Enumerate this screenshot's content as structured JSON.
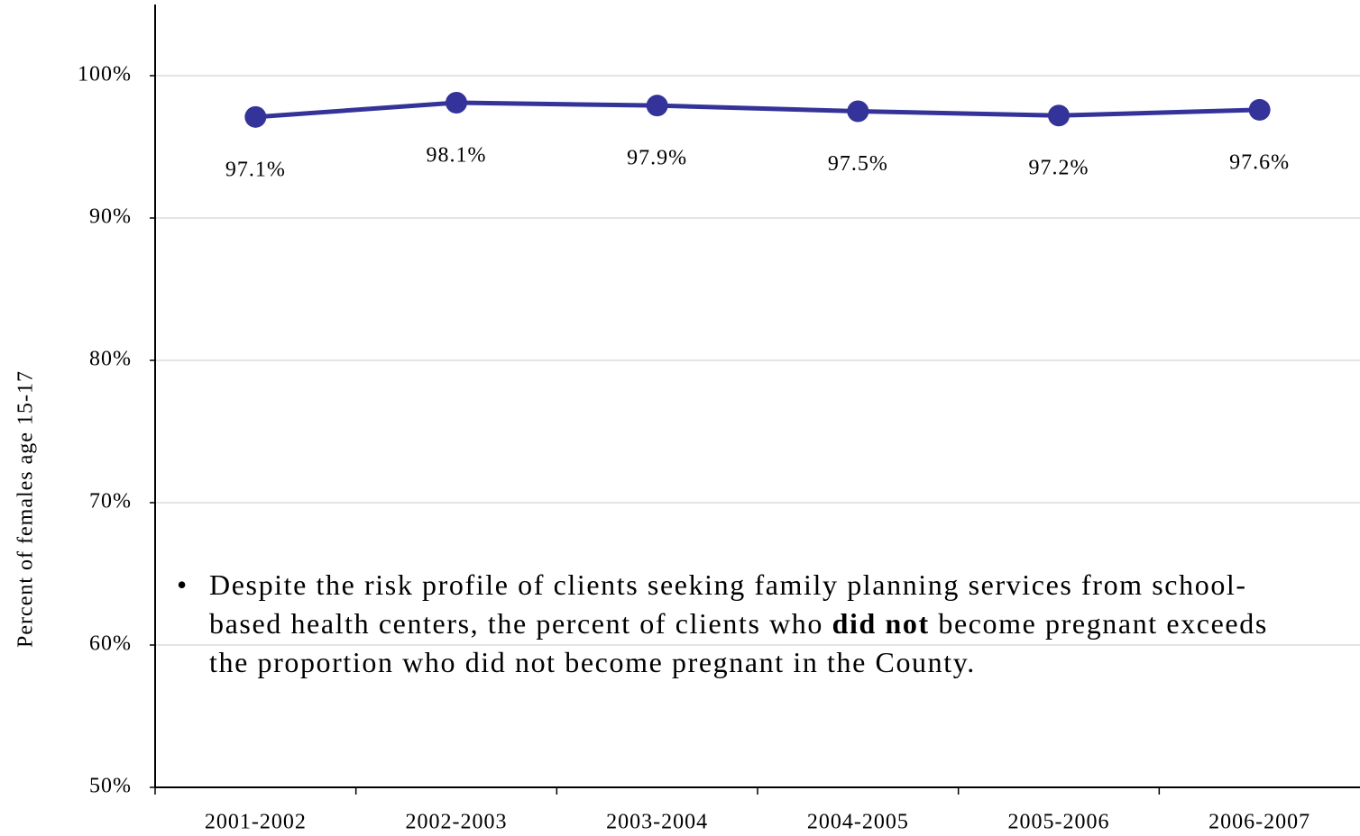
{
  "chart_data": {
    "type": "line",
    "y_label": "Percent of females age 15-17",
    "categories": [
      "2001-2002",
      "2002-2003",
      "2003-2004",
      "2004-2005",
      "2005-2006",
      "2006-2007"
    ],
    "series": [
      {
        "color": "#333399",
        "values": [
          97.1,
          98.1,
          97.9,
          97.5,
          97.2,
          97.6
        ],
        "value_labels": [
          "97.1%",
          "98.1%",
          "97.9%",
          "97.5%",
          "97.2%",
          "97.6%"
        ]
      }
    ],
    "ylim": [
      50,
      105
    ],
    "yticks": [
      {
        "value": 50,
        "label": "50%"
      },
      {
        "value": 60,
        "label": "60%"
      },
      {
        "value": 70,
        "label": "70%"
      },
      {
        "value": 80,
        "label": "80%"
      },
      {
        "value": 90,
        "label": "90%"
      },
      {
        "value": 100,
        "label": "100%"
      }
    ],
    "grid": true
  },
  "note": {
    "before": "Despite the risk profile of clients seeking family planning services from school-based health centers, the percent of clients who ",
    "bold": "did not",
    "after": " become pregnant exceeds the proportion who did not become pregnant in the County."
  }
}
